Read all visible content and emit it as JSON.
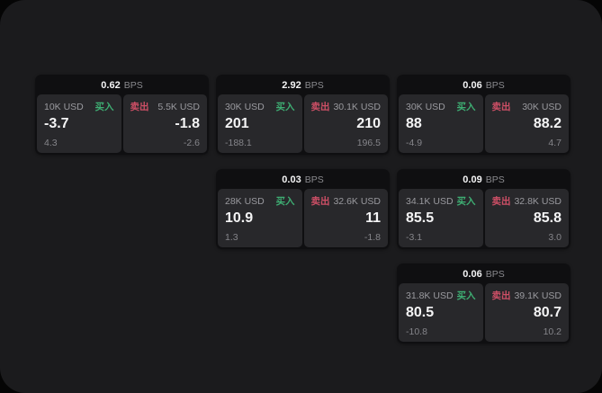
{
  "labels": {
    "buy": "买入",
    "sell": "卖出",
    "bps_unit": "BPS"
  },
  "colors": {
    "buy_accent": "#3eae73",
    "sell_accent": "#ce4f66",
    "panel_bg": "#1b1b1d",
    "card_bg": "#0f0f11",
    "pane_bg": "#28282b"
  },
  "cards": [
    {
      "row": 1,
      "col": 1,
      "bps": "0.62",
      "buy": {
        "amount": "10K USD",
        "price": "-3.7",
        "change": "4.3"
      },
      "sell": {
        "amount": "5.5K USD",
        "price": "-1.8",
        "change": "-2.6"
      }
    },
    {
      "row": 1,
      "col": 2,
      "bps": "2.92",
      "buy": {
        "amount": "30K USD",
        "price": "201",
        "change": "-188.1"
      },
      "sell": {
        "amount": "30.1K USD",
        "price": "210",
        "change": "196.5"
      }
    },
    {
      "row": 1,
      "col": 3,
      "bps": "0.06",
      "buy": {
        "amount": "30K USD",
        "price": "88",
        "change": "-4.9"
      },
      "sell": {
        "amount": "30K USD",
        "price": "88.2",
        "change": "4.7"
      }
    },
    {
      "row": 2,
      "col": 2,
      "bps": "0.03",
      "buy": {
        "amount": "28K USD",
        "price": "10.9",
        "change": "1.3"
      },
      "sell": {
        "amount": "32.6K USD",
        "price": "11",
        "change": "-1.8"
      }
    },
    {
      "row": 2,
      "col": 3,
      "bps": "0.09",
      "buy": {
        "amount": "34.1K USD",
        "price": "85.5",
        "change": "-3.1"
      },
      "sell": {
        "amount": "32.8K USD",
        "price": "85.8",
        "change": "3.0"
      }
    },
    {
      "row": 3,
      "col": 3,
      "bps": "0.06",
      "buy": {
        "amount": "31.8K USD",
        "price": "80.5",
        "change": "-10.8"
      },
      "sell": {
        "amount": "39.1K USD",
        "price": "80.7",
        "change": "10.2"
      }
    }
  ]
}
